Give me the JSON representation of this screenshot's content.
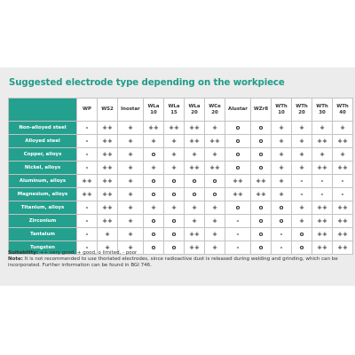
{
  "title": "Suggested electrode type depending on the workpiece",
  "columns": [
    "WP",
    "WS2",
    "Inostar",
    "WLa 10",
    "WLa 15",
    "WLa 20",
    "WCe 20",
    "Alustar",
    "WZr8",
    "WTh 10",
    "WTh 20",
    "WTh 30",
    "WTh 40"
  ],
  "rows": [
    {
      "label": "Non-alloyed steel",
      "cells": [
        "-",
        "++",
        "+",
        "++",
        "++",
        "++",
        "+",
        "o",
        "o",
        "+",
        "+",
        "+",
        "+"
      ]
    },
    {
      "label": "Alloyed steel",
      "cells": [
        "-",
        "++",
        "+",
        "+",
        "+",
        "++",
        "++",
        "o",
        "o",
        "+",
        "+",
        "++",
        "++"
      ]
    },
    {
      "label": "Copper, alloys",
      "cells": [
        "-",
        "++",
        "+",
        "o",
        "+",
        "+",
        "+",
        "o",
        "o",
        "+",
        "+",
        "+",
        "+"
      ]
    },
    {
      "label": "Nickel, alloys",
      "cells": [
        "-",
        "++",
        "+",
        "+",
        "+",
        "++",
        "++",
        "o",
        "o",
        "+",
        "+",
        "++",
        "++"
      ]
    },
    {
      "label": "Aluminum, alloys",
      "cells": [
        "++",
        "++",
        "+",
        "o",
        "o",
        "o",
        "o",
        "++",
        "++",
        "+",
        "-",
        "-",
        "-"
      ]
    },
    {
      "label": "Magnesium, alloys",
      "cells": [
        "++",
        "++",
        "+",
        "o",
        "o",
        "o",
        "o",
        "++",
        "++",
        "+",
        "-",
        "-",
        "-"
      ]
    },
    {
      "label": "Titanium, alloys",
      "cells": [
        "-",
        "++",
        "+",
        "+",
        "+",
        "+",
        "+",
        "o",
        "o",
        "o",
        "+",
        "++",
        "++"
      ]
    },
    {
      "label": "Zirconium",
      "cells": [
        "-",
        "++",
        "+",
        "o",
        "o",
        "+",
        "+",
        "-",
        "o",
        "o",
        "+",
        "++",
        "++"
      ]
    },
    {
      "label": "Tantalum",
      "cells": [
        "-",
        "+",
        "+",
        "o",
        "o",
        "++",
        "+",
        "-",
        "o",
        "-",
        "o",
        "++",
        "++"
      ]
    },
    {
      "label": "Tungsten",
      "cells": [
        "-",
        "+",
        "+",
        "o",
        "o",
        "++",
        "+",
        "-",
        "o",
        "-",
        "o",
        "++",
        "++"
      ]
    }
  ],
  "footer": {
    "suitability_label": "Suitability:",
    "suitability_text": " ++ very good, + good, o limited, - poor",
    "note_label": "Note:",
    "note_text": " It is not recommended to use thoriated electrodes, since radioactive dust is released during welding and grinding, which can be incorporated. Further information can be found in BGI 746."
  }
}
